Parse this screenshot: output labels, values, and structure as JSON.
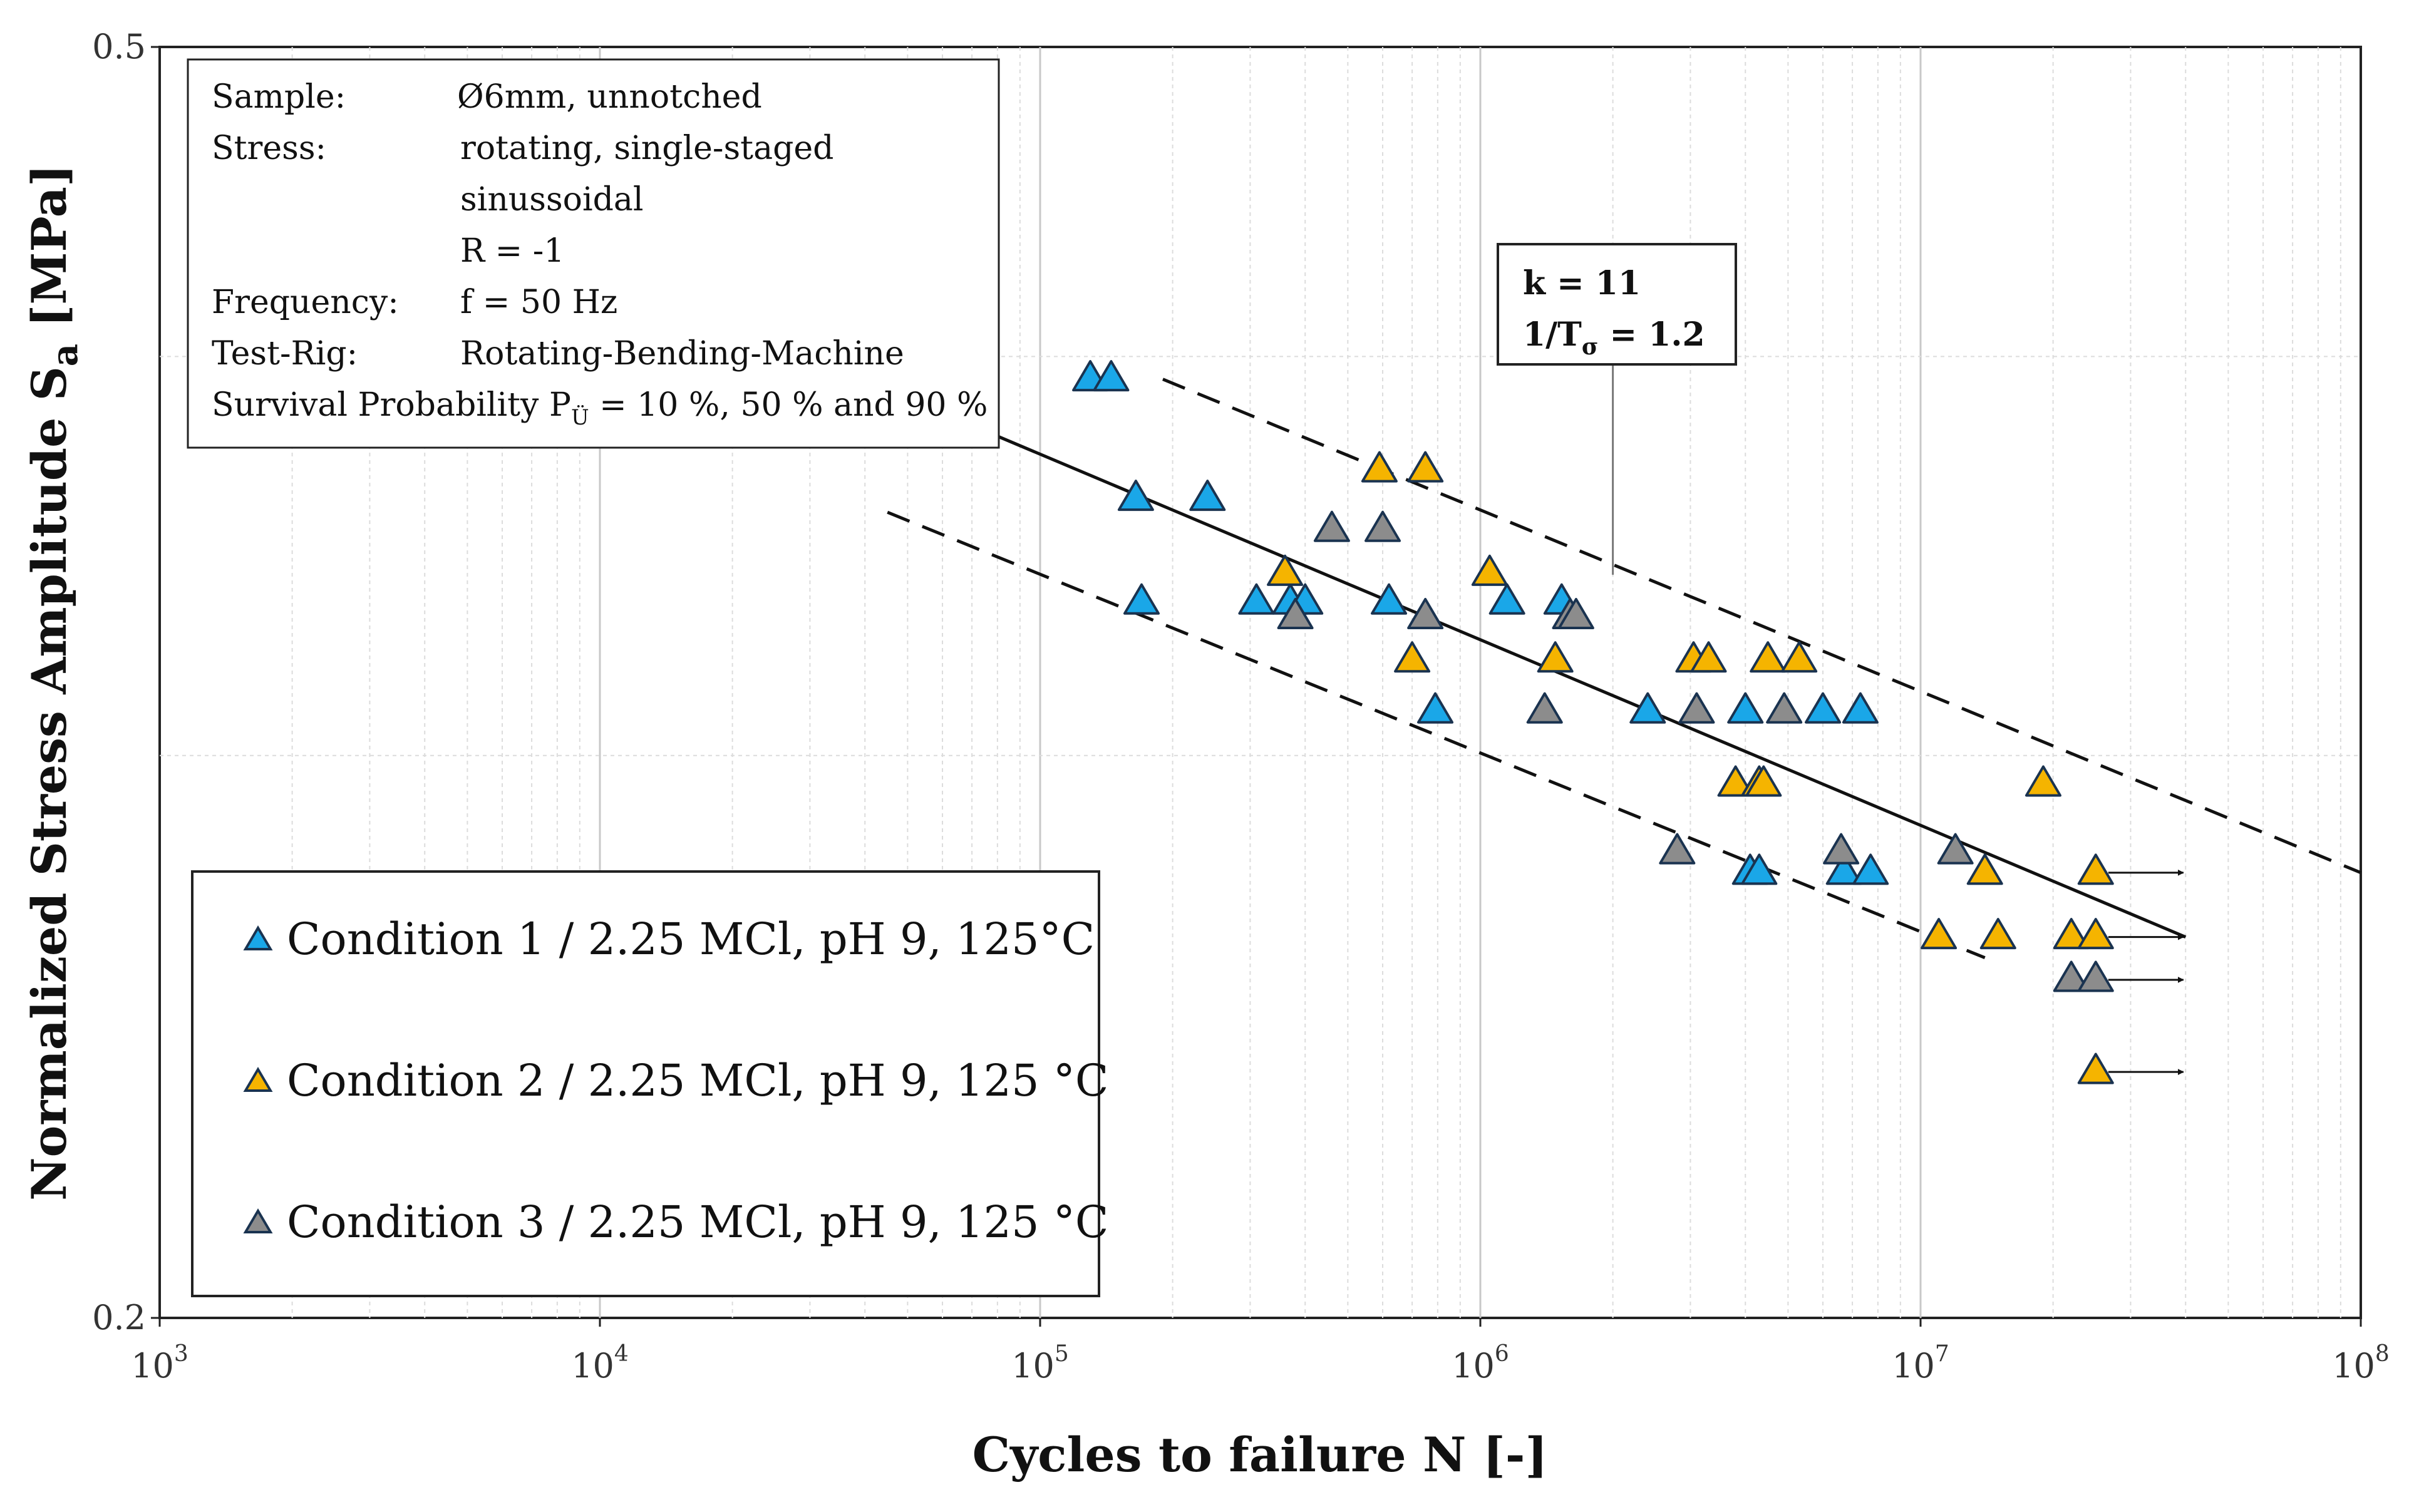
{
  "chart_data": {
    "type": "scatter",
    "x_scale": "log",
    "y_scale": "log",
    "xlabel": "Cycles to failure N [-]",
    "ylabel_main": "Normalized Stress Amplitude S",
    "ylabel_sub": "a",
    "ylabel_unit": " [MPa]",
    "xlim": [
      1000,
      100000000
    ],
    "ylim": [
      0.2,
      0.5
    ],
    "x_ticks": [
      {
        "value": 1000,
        "base": "10",
        "exp": "3"
      },
      {
        "value": 10000,
        "base": "10",
        "exp": "4"
      },
      {
        "value": 100000,
        "base": "10",
        "exp": "5"
      },
      {
        "value": 1000000,
        "base": "10",
        "exp": "6"
      },
      {
        "value": 10000000,
        "base": "10",
        "exp": "7"
      },
      {
        "value": 100000000,
        "base": "10",
        "exp": "8"
      }
    ],
    "y_ticks": [
      {
        "value": 0.5,
        "label": "0.5"
      },
      {
        "value": 0.2,
        "label": "0.2"
      }
    ],
    "info_box": [
      {
        "label": "Sample:",
        "value": "Ø6mm, unnotched"
      },
      {
        "label": "Stress:",
        "value": "rotating, single-staged"
      },
      {
        "label": "",
        "value": "sinussoidal"
      },
      {
        "label": "",
        "value": "R = -1"
      },
      {
        "label": "Frequency:",
        "value": "f = 50 Hz"
      },
      {
        "label": "Test-Rig:",
        "value": "Rotating-Bending-Machine"
      },
      {
        "label": "",
        "value": "Survival Probability P",
        "sub": "Ü",
        "tail": " = 10 %, 50 % and 90 %"
      }
    ],
    "annotation": {
      "k_text": "k = 11",
      "t_main": "1/T",
      "t_sub": "σ",
      "t_tail": " = 1.2",
      "pointer_x": 2000000
    },
    "lines": [
      {
        "name": "90%",
        "style": "dashed",
        "points": [
          [
            190000,
            0.3935
          ],
          [
            100000000,
            0.2757
          ]
        ]
      },
      {
        "name": "50%",
        "style": "solid",
        "points": [
          [
            45000,
            0.3905
          ],
          [
            40000000,
            0.2632
          ]
        ]
      },
      {
        "name": "10%",
        "style": "dashed",
        "points": [
          [
            45000,
            0.3575
          ],
          [
            14000000,
            0.2593
          ]
        ]
      }
    ],
    "runout_arrows": [
      {
        "x": 25000000,
        "y": 0.2757
      },
      {
        "x": 25000000,
        "y": 0.2632
      },
      {
        "x": 25000000,
        "y": 0.2552
      },
      {
        "x": 25000000,
        "y": 0.2388
      }
    ],
    "series": [
      {
        "name": "Condition 1 / 2.25 MCl, pH 9, 125°C",
        "color": "#1AA7E8",
        "points": [
          [
            130000,
            0.3935
          ],
          [
            145000,
            0.3935
          ],
          [
            165000,
            0.361
          ],
          [
            240000,
            0.361
          ],
          [
            170000,
            0.335
          ],
          [
            310000,
            0.335
          ],
          [
            370000,
            0.335
          ],
          [
            400000,
            0.335
          ],
          [
            620000,
            0.335
          ],
          [
            1150000,
            0.335
          ],
          [
            1530000,
            0.335
          ],
          [
            790000,
            0.3097
          ],
          [
            2400000,
            0.3097
          ],
          [
            4000000,
            0.3097
          ],
          [
            6000000,
            0.3097
          ],
          [
            7300000,
            0.3097
          ],
          [
            4100000,
            0.2757
          ],
          [
            4300000,
            0.2757
          ],
          [
            6700000,
            0.2757
          ],
          [
            7700000,
            0.2757
          ]
        ]
      },
      {
        "name": "Condition 2 / 2.25 MCl, pH 9, 125 °C",
        "color": "#F5B400",
        "points": [
          [
            590000,
            0.3685
          ],
          [
            750000,
            0.3685
          ],
          [
            360000,
            0.342
          ],
          [
            1050000,
            0.342
          ],
          [
            700000,
            0.3213
          ],
          [
            1480000,
            0.3213
          ],
          [
            3050000,
            0.3213
          ],
          [
            3300000,
            0.3213
          ],
          [
            4500000,
            0.3213
          ],
          [
            5300000,
            0.3213
          ],
          [
            3800000,
            0.2938
          ],
          [
            4300000,
            0.2938
          ],
          [
            4400000,
            0.2938
          ],
          [
            19000000,
            0.2938
          ],
          [
            14000000,
            0.2757
          ],
          [
            25000000,
            0.2757
          ],
          [
            11000000,
            0.2632
          ],
          [
            15000000,
            0.2632
          ],
          [
            22000000,
            0.2632
          ],
          [
            25000000,
            0.2632
          ],
          [
            25000000,
            0.2388
          ]
        ]
      },
      {
        "name": "Condition 3 / 2.25 MCl, pH 9, 125 °C",
        "color": "#8C8C8C",
        "points": [
          [
            460000,
            0.353
          ],
          [
            600000,
            0.353
          ],
          [
            380000,
            0.3315
          ],
          [
            750000,
            0.3315
          ],
          [
            1600000,
            0.3315
          ],
          [
            1650000,
            0.3315
          ],
          [
            1400000,
            0.3097
          ],
          [
            3100000,
            0.3097
          ],
          [
            4900000,
            0.3097
          ],
          [
            2800000,
            0.2798
          ],
          [
            6600000,
            0.2798
          ],
          [
            12000000,
            0.2798
          ],
          [
            22000000,
            0.2552
          ],
          [
            25000000,
            0.2552
          ]
        ]
      }
    ]
  }
}
